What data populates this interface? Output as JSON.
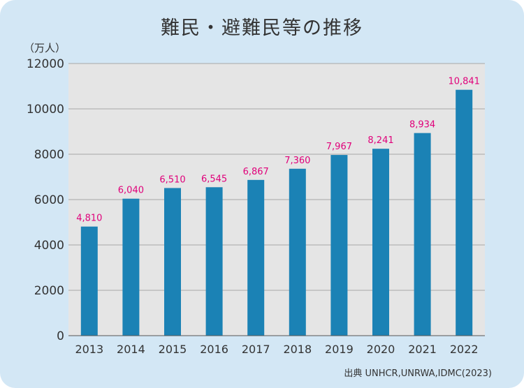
{
  "chart_data": {
    "type": "bar",
    "title": "難民・避難民等の推移",
    "ylabel": "（万人）",
    "source": "出典 UNHCR,UNRWA,IDMC(2023)",
    "categories": [
      "2013",
      "2014",
      "2015",
      "2016",
      "2017",
      "2018",
      "2019",
      "2020",
      "2021",
      "2022"
    ],
    "values": [
      4810,
      6040,
      6510,
      6545,
      6867,
      7360,
      7967,
      8241,
      8934,
      10841
    ],
    "value_labels": [
      "4,810",
      "6,040",
      "6,510",
      "6,545",
      "6,867",
      "7,360",
      "7,967",
      "8,241",
      "8,934",
      "10,841"
    ],
    "yticks": [
      "0",
      "2000",
      "4000",
      "6000",
      "8000",
      "10000",
      "12000"
    ],
    "ylim": [
      0,
      12000
    ],
    "grid": true,
    "legend": "none",
    "colors": {
      "background": "#d3e7f5",
      "plot_background": "#e5e5e5",
      "bar": "#1b82b5",
      "grid": "#a8a8a8",
      "data_label": "#e0007a"
    }
  }
}
